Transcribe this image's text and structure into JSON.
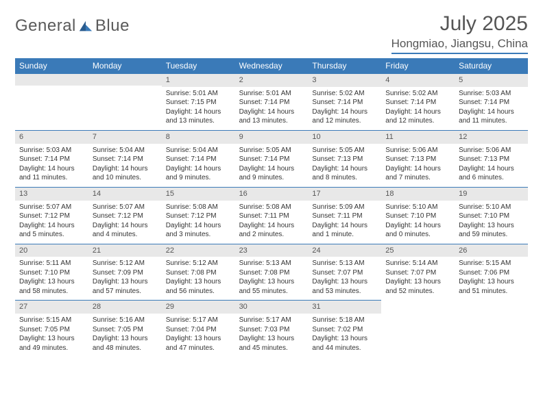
{
  "logo": {
    "word1": "General",
    "word2": "Blue"
  },
  "title": "July 2025",
  "location": "Hongmiao, Jiangsu, China",
  "colors": {
    "accent": "#3a7ab8",
    "dateBar": "#e8e8e8",
    "headerText": "#ffffff",
    "bodyText": "#333333"
  },
  "weekdays": [
    "Sunday",
    "Monday",
    "Tuesday",
    "Wednesday",
    "Thursday",
    "Friday",
    "Saturday"
  ],
  "leadingBlanks": 2,
  "days": [
    {
      "n": 1,
      "sunrise": "5:01 AM",
      "sunset": "7:15 PM",
      "daylight": "14 hours and 13 minutes."
    },
    {
      "n": 2,
      "sunrise": "5:01 AM",
      "sunset": "7:14 PM",
      "daylight": "14 hours and 13 minutes."
    },
    {
      "n": 3,
      "sunrise": "5:02 AM",
      "sunset": "7:14 PM",
      "daylight": "14 hours and 12 minutes."
    },
    {
      "n": 4,
      "sunrise": "5:02 AM",
      "sunset": "7:14 PM",
      "daylight": "14 hours and 12 minutes."
    },
    {
      "n": 5,
      "sunrise": "5:03 AM",
      "sunset": "7:14 PM",
      "daylight": "14 hours and 11 minutes."
    },
    {
      "n": 6,
      "sunrise": "5:03 AM",
      "sunset": "7:14 PM",
      "daylight": "14 hours and 11 minutes."
    },
    {
      "n": 7,
      "sunrise": "5:04 AM",
      "sunset": "7:14 PM",
      "daylight": "14 hours and 10 minutes."
    },
    {
      "n": 8,
      "sunrise": "5:04 AM",
      "sunset": "7:14 PM",
      "daylight": "14 hours and 9 minutes."
    },
    {
      "n": 9,
      "sunrise": "5:05 AM",
      "sunset": "7:14 PM",
      "daylight": "14 hours and 9 minutes."
    },
    {
      "n": 10,
      "sunrise": "5:05 AM",
      "sunset": "7:13 PM",
      "daylight": "14 hours and 8 minutes."
    },
    {
      "n": 11,
      "sunrise": "5:06 AM",
      "sunset": "7:13 PM",
      "daylight": "14 hours and 7 minutes."
    },
    {
      "n": 12,
      "sunrise": "5:06 AM",
      "sunset": "7:13 PM",
      "daylight": "14 hours and 6 minutes."
    },
    {
      "n": 13,
      "sunrise": "5:07 AM",
      "sunset": "7:12 PM",
      "daylight": "14 hours and 5 minutes."
    },
    {
      "n": 14,
      "sunrise": "5:07 AM",
      "sunset": "7:12 PM",
      "daylight": "14 hours and 4 minutes."
    },
    {
      "n": 15,
      "sunrise": "5:08 AM",
      "sunset": "7:12 PM",
      "daylight": "14 hours and 3 minutes."
    },
    {
      "n": 16,
      "sunrise": "5:08 AM",
      "sunset": "7:11 PM",
      "daylight": "14 hours and 2 minutes."
    },
    {
      "n": 17,
      "sunrise": "5:09 AM",
      "sunset": "7:11 PM",
      "daylight": "14 hours and 1 minute."
    },
    {
      "n": 18,
      "sunrise": "5:10 AM",
      "sunset": "7:10 PM",
      "daylight": "14 hours and 0 minutes."
    },
    {
      "n": 19,
      "sunrise": "5:10 AM",
      "sunset": "7:10 PM",
      "daylight": "13 hours and 59 minutes."
    },
    {
      "n": 20,
      "sunrise": "5:11 AM",
      "sunset": "7:10 PM",
      "daylight": "13 hours and 58 minutes."
    },
    {
      "n": 21,
      "sunrise": "5:12 AM",
      "sunset": "7:09 PM",
      "daylight": "13 hours and 57 minutes."
    },
    {
      "n": 22,
      "sunrise": "5:12 AM",
      "sunset": "7:08 PM",
      "daylight": "13 hours and 56 minutes."
    },
    {
      "n": 23,
      "sunrise": "5:13 AM",
      "sunset": "7:08 PM",
      "daylight": "13 hours and 55 minutes."
    },
    {
      "n": 24,
      "sunrise": "5:13 AM",
      "sunset": "7:07 PM",
      "daylight": "13 hours and 53 minutes."
    },
    {
      "n": 25,
      "sunrise": "5:14 AM",
      "sunset": "7:07 PM",
      "daylight": "13 hours and 52 minutes."
    },
    {
      "n": 26,
      "sunrise": "5:15 AM",
      "sunset": "7:06 PM",
      "daylight": "13 hours and 51 minutes."
    },
    {
      "n": 27,
      "sunrise": "5:15 AM",
      "sunset": "7:05 PM",
      "daylight": "13 hours and 49 minutes."
    },
    {
      "n": 28,
      "sunrise": "5:16 AM",
      "sunset": "7:05 PM",
      "daylight": "13 hours and 48 minutes."
    },
    {
      "n": 29,
      "sunrise": "5:17 AM",
      "sunset": "7:04 PM",
      "daylight": "13 hours and 47 minutes."
    },
    {
      "n": 30,
      "sunrise": "5:17 AM",
      "sunset": "7:03 PM",
      "daylight": "13 hours and 45 minutes."
    },
    {
      "n": 31,
      "sunrise": "5:18 AM",
      "sunset": "7:02 PM",
      "daylight": "13 hours and 44 minutes."
    }
  ],
  "labels": {
    "sunrise": "Sunrise:",
    "sunset": "Sunset:",
    "daylight": "Daylight:"
  }
}
